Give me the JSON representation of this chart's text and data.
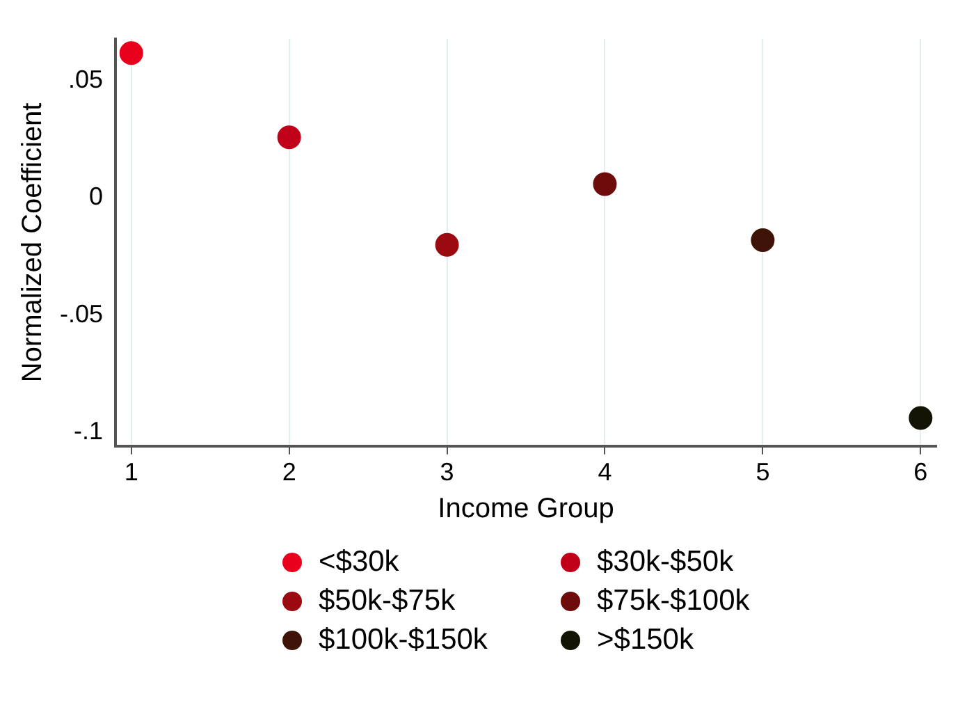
{
  "chart_data": {
    "type": "scatter",
    "xlabel": "Income Group",
    "ylabel": "Normalized Coefficient",
    "xlim": [
      0.9,
      6.1
    ],
    "xticks": [
      1,
      2,
      3,
      4,
      5,
      6
    ],
    "ylim": [
      -0.106,
      0.068
    ],
    "yticks": [
      {
        "value": 0.05,
        "label": ".05"
      },
      0,
      {
        "value": -0.05,
        "label": "-.05"
      },
      {
        "value": -0.1,
        "label": "-.1"
      }
    ],
    "grid": "x",
    "legend": "bottom",
    "marker": "circle",
    "series": [
      {
        "name": "<$30k",
        "color": "#e8001c",
        "x": [
          1
        ],
        "values": [
          0.062
        ]
      },
      {
        "name": "$30k-$50k",
        "color": "#c00018",
        "x": [
          2
        ],
        "values": [
          0.026
        ]
      },
      {
        "name": "$50k-$75k",
        "color": "#9a0a10",
        "x": [
          3
        ],
        "values": [
          -0.02
        ]
      },
      {
        "name": "$75k-$100k",
        "color": "#6e0c0c",
        "x": [
          4
        ],
        "values": [
          0.006
        ]
      },
      {
        "name": "$100k-$150k",
        "color": "#3e1408",
        "x": [
          5
        ],
        "values": [
          -0.018
        ]
      },
      {
        "name": ">$150k",
        "color": "#141405",
        "x": [
          6
        ],
        "values": [
          -0.094
        ]
      }
    ]
  }
}
